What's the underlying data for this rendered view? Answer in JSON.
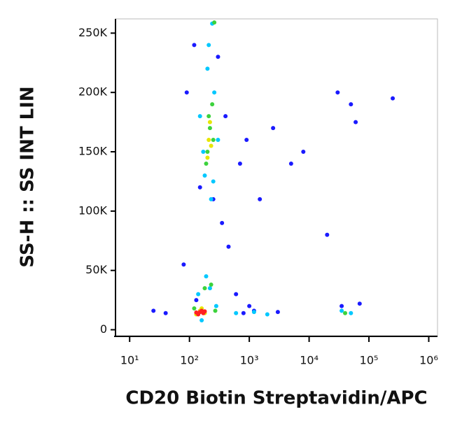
{
  "chart_data": {
    "type": "scatter",
    "x_label": "CD20 Biotin Streptavidin/APC",
    "y_label": "SS-H :: SS INT LIN",
    "x_scale": "log",
    "xlim": [
      5.8,
      1400000
    ],
    "ylim": [
      -5000,
      262000
    ],
    "xticks": [
      {
        "value": 10,
        "label": "10¹"
      },
      {
        "value": 100,
        "label": "10²"
      },
      {
        "value": 1000,
        "label": "10³"
      },
      {
        "value": 10000,
        "label": "10⁴"
      },
      {
        "value": 100000,
        "label": "10⁵"
      },
      {
        "value": 1000000,
        "label": "10⁶"
      }
    ],
    "yticks": [
      0,
      {
        "value": 50000,
        "label": "50K"
      },
      {
        "value": 100000,
        "label": "100K"
      },
      {
        "value": 150000,
        "label": "150K"
      },
      {
        "value": 200000,
        "label": "200K"
      },
      {
        "value": 250000,
        "label": "250K"
      }
    ],
    "series": [
      {
        "color": "#1a1aff",
        "x": [
          120,
          300,
          90,
          400,
          150,
          250,
          350,
          80,
          450,
          600,
          700,
          900,
          1500,
          2500,
          5000,
          8000,
          20000,
          30000,
          50000,
          60000,
          1200,
          800,
          3000,
          25,
          40,
          35000,
          70000,
          130,
          1000,
          250000
        ],
        "values": [
          240000,
          230000,
          200000,
          180000,
          120000,
          110000,
          90000,
          55000,
          70000,
          30000,
          140000,
          160000,
          110000,
          170000,
          140000,
          150000,
          80000,
          200000,
          190000,
          175000,
          16000,
          14000,
          15000,
          16000,
          14000,
          20000,
          22000,
          25000,
          20000,
          195000
        ]
      },
      {
        "color": "#00c8ff",
        "x": [
          200,
          180,
          260,
          150,
          230,
          300,
          210,
          170,
          250,
          190,
          140,
          220,
          280,
          600,
          1200,
          2000,
          35000,
          50000,
          160,
          240
        ],
        "values": [
          220000,
          130000,
          200000,
          180000,
          110000,
          160000,
          240000,
          150000,
          125000,
          45000,
          30000,
          35000,
          20000,
          14000,
          15000,
          13000,
          16000,
          14000,
          8000,
          258000
        ]
      },
      {
        "color": "#3cd23c",
        "x": [
          220,
          200,
          240,
          190,
          250,
          210,
          180,
          230,
          120,
          270,
          40000,
          260
        ],
        "values": [
          170000,
          150000,
          190000,
          140000,
          160000,
          180000,
          35000,
          38000,
          18000,
          16000,
          14000,
          259000
        ]
      },
      {
        "color": "#e6e600",
        "x": [
          210,
          230,
          200,
          220,
          150,
          180,
          130,
          160
        ],
        "values": [
          160000,
          155000,
          145000,
          175000,
          16000,
          14000,
          13000,
          18000
        ]
      },
      {
        "color": "#ff2020",
        "x": [
          150,
          170,
          140,
          160,
          130,
          180
        ],
        "values": [
          15000,
          14000,
          13000,
          16000,
          14500,
          15500
        ]
      }
    ]
  }
}
